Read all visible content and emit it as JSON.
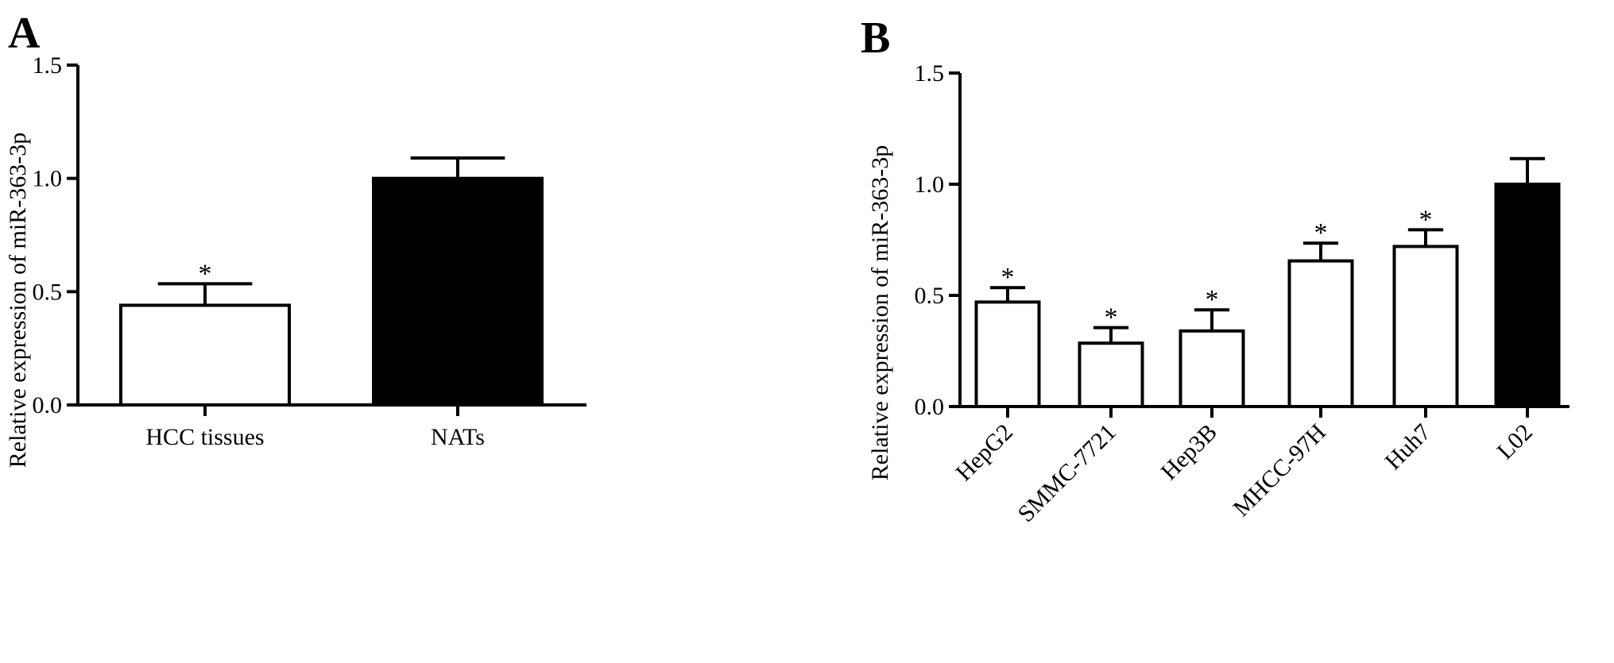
{
  "chart_data": [
    {
      "panel": "A",
      "type": "bar",
      "title": "",
      "xlabel": "",
      "ylabel": "Relative expression of miR-363-3p",
      "ylim": [
        0,
        1.5
      ],
      "yticks": [
        "0.0",
        "0.5",
        "1.0",
        "1.5"
      ],
      "categories": [
        "HCC tissues",
        "NATs"
      ],
      "values": [
        0.44,
        1.0
      ],
      "errors": [
        0.095,
        0.09
      ],
      "fill": [
        "#ffffff",
        "#000000"
      ],
      "significance": [
        "*",
        ""
      ],
      "grid": false
    },
    {
      "panel": "B",
      "type": "bar",
      "title": "",
      "xlabel": "",
      "ylabel": "Relative expression of miR-363-3p",
      "ylim": [
        0,
        1.5
      ],
      "yticks": [
        "0.0",
        "0.5",
        "1.0",
        "1.5"
      ],
      "categories": [
        "HepG2",
        "SMMC-7721",
        "Hep3B",
        "MHCC-97H",
        "Huh7",
        "L02"
      ],
      "values": [
        0.47,
        0.285,
        0.34,
        0.655,
        0.72,
        1.0
      ],
      "errors": [
        0.065,
        0.07,
        0.095,
        0.08,
        0.075,
        0.115
      ],
      "fill": [
        "#ffffff",
        "#ffffff",
        "#ffffff",
        "#ffffff",
        "#ffffff",
        "#000000"
      ],
      "significance": [
        "*",
        "*",
        "*",
        "*",
        "*",
        ""
      ],
      "grid": false
    }
  ]
}
